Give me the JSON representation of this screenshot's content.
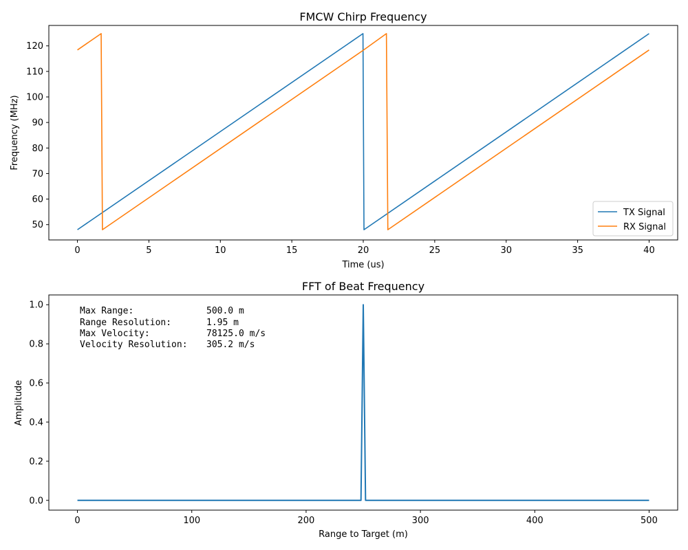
{
  "chart_data": [
    {
      "type": "line",
      "title": "FMCW Chirp Frequency",
      "xlabel": "Time (us)",
      "ylabel": "Frequency (MHz)",
      "xlim": [
        -2,
        42
      ],
      "ylim": [
        44,
        128
      ],
      "x_ticks": [
        0,
        5,
        10,
        15,
        20,
        25,
        30,
        35,
        40
      ],
      "y_ticks": [
        50,
        60,
        70,
        80,
        90,
        100,
        110,
        120
      ],
      "grid": false,
      "legend": "bottom-right",
      "series": [
        {
          "name": "TX Signal",
          "color": "#1f77b4",
          "points": [
            [
              0,
              48.0
            ],
            [
              19.98,
              124.8
            ],
            [
              20.05,
              48.0
            ],
            [
              40,
              124.8
            ]
          ]
        },
        {
          "name": "RX Signal",
          "color": "#ff7f0e",
          "points": [
            [
              0,
              118.4
            ],
            [
              1.66,
              124.8
            ],
            [
              1.75,
              48.0
            ],
            [
              19.98,
              118.2
            ],
            [
              21.62,
              124.8
            ],
            [
              21.72,
              48.0
            ],
            [
              40,
              118.4
            ]
          ]
        }
      ]
    },
    {
      "type": "line",
      "title": "FFT of Beat Frequency",
      "xlabel": "Range to Target (m)",
      "ylabel": "Amplitude",
      "xlim": [
        -25,
        525
      ],
      "ylim": [
        -0.05,
        1.05
      ],
      "x_ticks": [
        0,
        100,
        200,
        300,
        400,
        500
      ],
      "y_ticks": [
        0.0,
        0.2,
        0.4,
        0.6,
        0.8,
        1.0
      ],
      "grid": false,
      "series": [
        {
          "color": "#1f77b4",
          "points": [
            [
              0,
              0
            ],
            [
              248.0,
              0
            ],
            [
              250.0,
              1.0
            ],
            [
              252.0,
              0
            ],
            [
              500,
              0
            ]
          ]
        }
      ],
      "annotations": [
        {
          "label": "Max Range:",
          "value": "500.0 m"
        },
        {
          "label": "Range Resolution:",
          "value": "1.95 m"
        },
        {
          "label": "Max Velocity:",
          "value": "78125.0 m/s"
        },
        {
          "label": "Velocity Resolution:",
          "value": "305.2 m/s"
        }
      ]
    }
  ]
}
